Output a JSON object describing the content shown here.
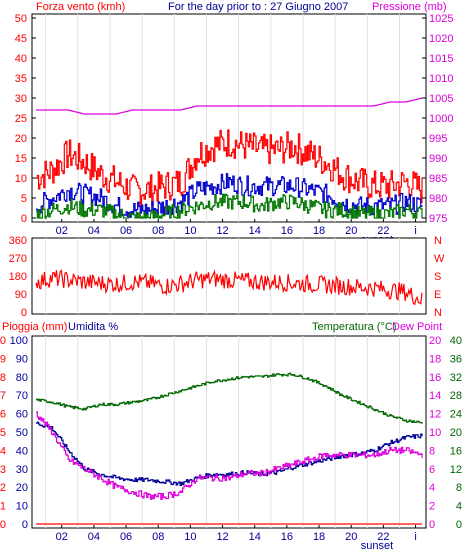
{
  "colors": {
    "wind": "#ff0000",
    "wind_avg": "#0000cc",
    "wind_min": "#007700",
    "pressure": "#dd00dd",
    "direction": "#ff0000",
    "rain": "#ff0000",
    "humidity": "#000099",
    "temperature": "#006600",
    "dewpoint": "#dd00dd",
    "grid": "#888888",
    "frame": "#000000"
  },
  "header": {
    "wind_title": "Forza vento (kmh)",
    "day_title": "For the day prior to : 27 Giugno 2007",
    "pressure_title": "Pressione (mb)"
  },
  "bottom_header": {
    "rain_title": "Pioggia (mm)",
    "humidity_title": "Umidita %",
    "temp_title": "Temperatura (°C)",
    "dew_title": "Dew Point"
  },
  "x_labels": [
    "02",
    "04",
    "06",
    "08",
    "10",
    "12",
    "14",
    "16",
    "18",
    "20",
    "22",
    "i"
  ],
  "sunset_label": "sunset",
  "chart_data": [
    {
      "type": "line",
      "title": "Forza vento (kmh)",
      "y_axis_left": {
        "label": "Forza vento (kmh)",
        "ticks": [
          "0",
          "5",
          "10",
          "15",
          "20",
          "25",
          "30",
          "35",
          "40",
          "45",
          "50"
        ],
        "ylim": [
          0,
          50
        ]
      },
      "y_axis_right": {
        "label": "Pressione (mb)",
        "ticks": [
          "975",
          "980",
          "985",
          "990",
          "995",
          "1000",
          "1005",
          "1010",
          "1015",
          "1020",
          "1025"
        ],
        "ylim": [
          975,
          1025
        ]
      },
      "series": [
        {
          "name": "Forza vento (kmh)",
          "x": [
            0,
            1,
            2,
            3,
            4,
            5,
            6,
            7,
            8,
            9,
            10,
            11,
            12,
            13,
            14,
            15,
            16,
            17,
            18,
            19,
            20,
            21,
            22,
            23,
            24
          ],
          "values": [
            10,
            12,
            16,
            14,
            11,
            9,
            7,
            7,
            8,
            9,
            16,
            18,
            19,
            18,
            17,
            17,
            18,
            16,
            14,
            11,
            9,
            8,
            8,
            9,
            7
          ]
        },
        {
          "name": "wind avg",
          "x": [
            0,
            1,
            2,
            3,
            4,
            5,
            6,
            7,
            8,
            9,
            10,
            11,
            12,
            13,
            14,
            15,
            16,
            17,
            18,
            19,
            20,
            21,
            22,
            23,
            24
          ],
          "values": [
            3,
            5,
            7,
            6,
            5,
            3,
            2,
            2,
            3,
            4,
            7,
            8,
            9,
            8,
            8,
            8,
            8,
            7,
            6,
            4,
            3,
            3,
            3,
            4,
            3
          ]
        },
        {
          "name": "wind min",
          "x": [
            0,
            1,
            2,
            3,
            4,
            5,
            6,
            7,
            8,
            9,
            10,
            11,
            12,
            13,
            14,
            15,
            16,
            17,
            18,
            19,
            20,
            21,
            22,
            23,
            24
          ],
          "values": [
            1,
            2,
            3,
            2,
            2,
            1,
            0,
            0,
            1,
            2,
            3,
            4,
            4,
            4,
            3,
            4,
            4,
            3,
            2,
            2,
            1,
            1,
            1,
            2,
            1
          ]
        },
        {
          "name": "Pressione (mb)",
          "x": [
            0,
            1,
            2,
            3,
            4,
            5,
            6,
            7,
            8,
            9,
            10,
            11,
            12,
            13,
            14,
            15,
            16,
            17,
            18,
            19,
            20,
            21,
            22,
            23,
            24
          ],
          "values": [
            1002,
            1002,
            1002,
            1001,
            1001,
            1001,
            1002,
            1002,
            1002,
            1002,
            1003,
            1003,
            1003,
            1003,
            1003,
            1003,
            1003,
            1003,
            1003,
            1003,
            1003,
            1003,
            1004,
            1004,
            1005
          ]
        }
      ]
    },
    {
      "type": "line",
      "title": "Wind direction",
      "y_axis_left": {
        "ticks": [
          "0",
          "90",
          "180",
          "270",
          "360"
        ],
        "ylim": [
          0,
          360
        ]
      },
      "y_axis_right": {
        "ticks": [
          "N",
          "W",
          "S",
          "E",
          "N"
        ]
      },
      "series": [
        {
          "name": "direction",
          "x": [
            0,
            1,
            2,
            3,
            4,
            5,
            6,
            7,
            8,
            9,
            10,
            11,
            12,
            13,
            14,
            15,
            16,
            17,
            18,
            19,
            20,
            21,
            22,
            23,
            24
          ],
          "values": [
            150,
            170,
            160,
            150,
            145,
            140,
            150,
            145,
            130,
            140,
            160,
            165,
            160,
            155,
            150,
            150,
            145,
            140,
            135,
            130,
            125,
            120,
            110,
            100,
            60
          ]
        }
      ]
    },
    {
      "type": "line",
      "title": "Pioggia / Umidita / Temperatura / Dew Point",
      "y_axis_left_rain": {
        "label": "Pioggia (mm)",
        "ticks": [
          "0",
          "1",
          "2",
          "3",
          "4",
          "5",
          "6",
          "7",
          "8",
          "9",
          "10"
        ],
        "ylim": [
          0,
          10
        ]
      },
      "y_axis_left_hum": {
        "label": "Umidita %",
        "ticks": [
          "0",
          "10",
          "20",
          "30",
          "40",
          "50",
          "60",
          "70",
          "80",
          "90",
          "100"
        ],
        "ylim": [
          0,
          100
        ]
      },
      "y_axis_right_temp": {
        "label": "Temperatura (°C)",
        "ticks": [
          "0",
          "4",
          "8",
          "12",
          "16",
          "20",
          "24",
          "28",
          "32",
          "36",
          "40"
        ],
        "ylim": [
          0,
          40
        ]
      },
      "y_axis_right_dew": {
        "label": "Dew Point",
        "ticks": [
          "0",
          "2",
          "4",
          "6",
          "8",
          "10",
          "12",
          "14",
          "16",
          "18",
          "20"
        ],
        "ylim": [
          0,
          20
        ]
      },
      "series": [
        {
          "name": "Pioggia (mm)",
          "x": [
            0,
            24
          ],
          "values": [
            0,
            0
          ]
        },
        {
          "name": "Umidita %",
          "x": [
            0,
            1,
            2,
            3,
            4,
            5,
            6,
            7,
            8,
            9,
            10,
            11,
            12,
            13,
            14,
            15,
            16,
            17,
            18,
            19,
            20,
            21,
            22,
            23,
            24
          ],
          "values": [
            55,
            52,
            40,
            30,
            27,
            25,
            24,
            24,
            23,
            22,
            25,
            27,
            27,
            28,
            27,
            28,
            31,
            33,
            35,
            37,
            38,
            40,
            44,
            47,
            48
          ]
        },
        {
          "name": "Temperatura (°C)",
          "x": [
            0,
            1,
            2,
            3,
            4,
            5,
            6,
            7,
            8,
            9,
            10,
            11,
            12,
            13,
            14,
            15,
            16,
            17,
            18,
            19,
            20,
            21,
            22,
            23,
            24
          ],
          "values": [
            27,
            26.5,
            25.5,
            25,
            26,
            26,
            26.5,
            27,
            28,
            29,
            30,
            31,
            31.5,
            32,
            32,
            32.5,
            32.5,
            31.5,
            30,
            28,
            26.5,
            25,
            23.5,
            22.5,
            22
          ]
        },
        {
          "name": "Dew Point",
          "x": [
            0,
            1,
            2,
            3,
            4,
            5,
            6,
            7,
            8,
            9,
            10,
            11,
            12,
            13,
            14,
            15,
            16,
            17,
            18,
            19,
            20,
            21,
            22,
            23,
            24
          ],
          "values": [
            12,
            10,
            7,
            6,
            5,
            4,
            3.5,
            3,
            3,
            3.5,
            5,
            5,
            5,
            5.5,
            5.5,
            6,
            6.5,
            7,
            7.5,
            7.5,
            7.5,
            7.5,
            8,
            8,
            7.5
          ]
        }
      ]
    }
  ]
}
